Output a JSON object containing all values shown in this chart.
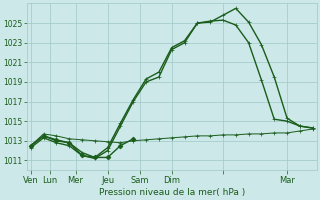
{
  "background_color": "#cce8e8",
  "grid_color": "#a0c8c8",
  "line_color": "#1a5c1a",
  "title": "Pression niveau de la mer( hPa )",
  "ylabel_ticks": [
    1011,
    1013,
    1015,
    1017,
    1019,
    1021,
    1023,
    1025
  ],
  "ylim": [
    1010.0,
    1027.0
  ],
  "xlim": [
    -0.3,
    22.3
  ],
  "xtick_positions": [
    0,
    1.5,
    3.5,
    6,
    8.5,
    11,
    15,
    20
  ],
  "xtick_labels": [
    "Ven",
    "Lun",
    "Mer",
    "Jeu",
    "Sam",
    "Dim",
    "",
    "Mar"
  ],
  "series": {
    "flat": {
      "x": [
        0,
        1,
        2,
        3,
        4,
        5,
        6,
        7,
        8,
        9,
        10,
        11,
        12,
        13,
        14,
        15,
        16,
        17,
        18,
        19,
        20,
        21,
        22
      ],
      "y": [
        1012.5,
        1013.7,
        1013.5,
        1013.2,
        1013.1,
        1013.0,
        1012.9,
        1012.8,
        1013.0,
        1013.1,
        1013.2,
        1013.3,
        1013.4,
        1013.5,
        1013.5,
        1013.6,
        1013.6,
        1013.7,
        1013.7,
        1013.8,
        1013.8,
        1014.0,
        1014.2
      ],
      "marker": "+"
    },
    "dip": {
      "x": [
        0,
        1,
        2,
        3,
        4,
        5,
        6,
        7,
        8
      ],
      "y": [
        1012.5,
        1013.5,
        1013.1,
        1012.8,
        1011.5,
        1011.3,
        1011.3,
        1012.5,
        1013.2
      ],
      "marker": "D"
    },
    "high1": {
      "x": [
        0,
        1,
        2,
        3,
        4,
        5,
        6,
        7,
        8,
        9,
        10,
        11,
        12,
        13,
        14,
        15,
        16,
        17,
        18,
        19,
        20,
        21,
        22
      ],
      "y": [
        1012.5,
        1013.5,
        1013.0,
        1012.8,
        1011.8,
        1011.3,
        1012.3,
        1014.8,
        1017.2,
        1019.3,
        1020.0,
        1022.5,
        1023.2,
        1025.0,
        1025.1,
        1025.8,
        1026.5,
        1025.1,
        1022.8,
        1019.5,
        1015.3,
        1014.5,
        1014.3
      ],
      "marker": "+"
    },
    "high2": {
      "x": [
        0,
        1,
        2,
        3,
        4,
        5,
        6,
        7,
        8,
        9,
        10,
        11,
        12,
        13,
        14,
        15,
        16,
        17,
        18,
        19,
        20,
        21,
        22
      ],
      "y": [
        1012.3,
        1013.3,
        1012.8,
        1012.5,
        1011.5,
        1011.2,
        1012.0,
        1014.5,
        1017.0,
        1019.0,
        1019.5,
        1022.3,
        1023.0,
        1025.0,
        1025.2,
        1025.3,
        1024.8,
        1023.0,
        1019.2,
        1015.2,
        1015.0,
        1014.5,
        1014.3
      ],
      "marker": "+"
    }
  },
  "marker_size": 3.5,
  "linewidth": 1.0
}
